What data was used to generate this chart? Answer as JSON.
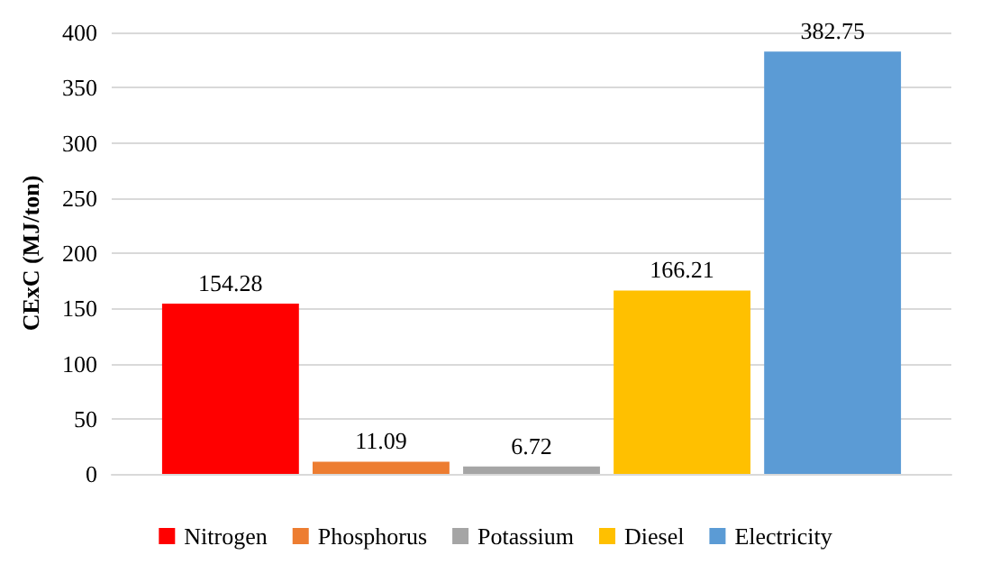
{
  "chart_data": {
    "type": "bar",
    "ylabel": "CExC (MJ/ton)",
    "categories": [
      null
    ],
    "series": [
      {
        "name": "Nitrogen",
        "color": "#ff0000",
        "values": [
          154.28
        ]
      },
      {
        "name": "Phosphorus",
        "color": "#ed7d31",
        "values": [
          11.09
        ]
      },
      {
        "name": "Potassium",
        "color": "#a5a5a5",
        "values": [
          6.72
        ]
      },
      {
        "name": "Diesel",
        "color": "#ffc000",
        "values": [
          166.21
        ]
      },
      {
        "name": "Electricity",
        "color": "#5b9bd5",
        "values": [
          382.75
        ]
      }
    ],
    "ylim": [
      0,
      400
    ],
    "yticks": [
      0,
      50,
      100,
      150,
      200,
      250,
      300,
      350,
      400
    ],
    "grid": "y",
    "legend": "bottom",
    "data_labels": true
  }
}
